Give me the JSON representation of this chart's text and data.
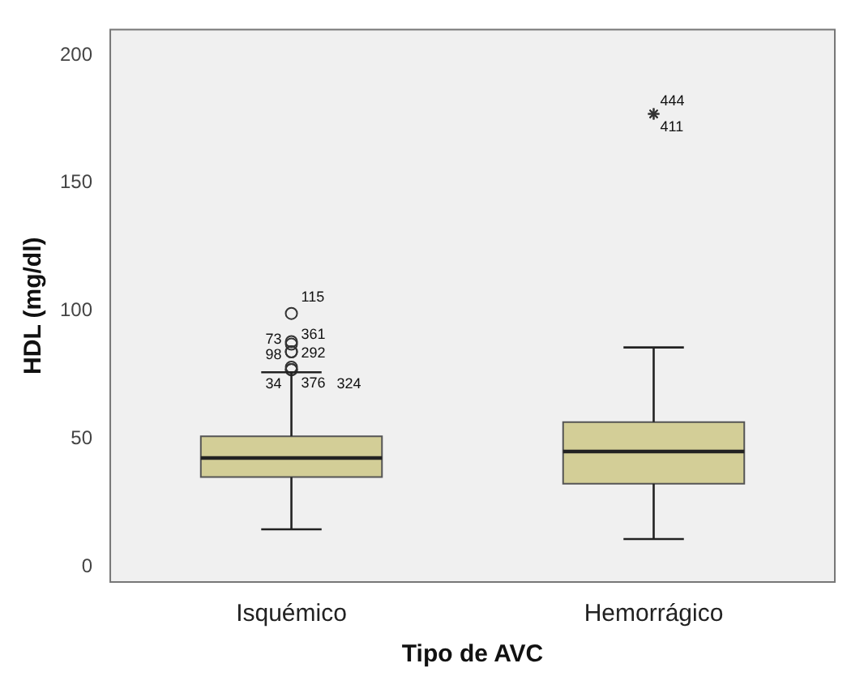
{
  "chart_data": {
    "type": "box",
    "xlabel": "Tipo de AVC",
    "ylabel": "HDL (mg/dl)",
    "categories": [
      "Isquémico",
      "Hemorrágico"
    ],
    "color": "#d3ce97",
    "boxes": [
      {
        "low": 14.6,
        "q1": 35,
        "median": 42.5,
        "q3": 51,
        "high": 76,
        "outliers": [
          99,
          88,
          87,
          84,
          84,
          78,
          77,
          77
        ]
      },
      {
        "low": 10.8,
        "q1": 32.4,
        "median": 45,
        "q3": 56.5,
        "high": 85.7,
        "outliers": [
          177,
          177
        ]
      }
    ],
    "ylim": [
      -6,
      210
    ],
    "yticks": [
      0,
      50,
      100,
      150,
      200
    ],
    "grid": false,
    "legend": false,
    "annotations": [
      "115",
      "361",
      "73",
      "292",
      "98",
      "376",
      "324",
      "34",
      "444",
      "411"
    ]
  }
}
